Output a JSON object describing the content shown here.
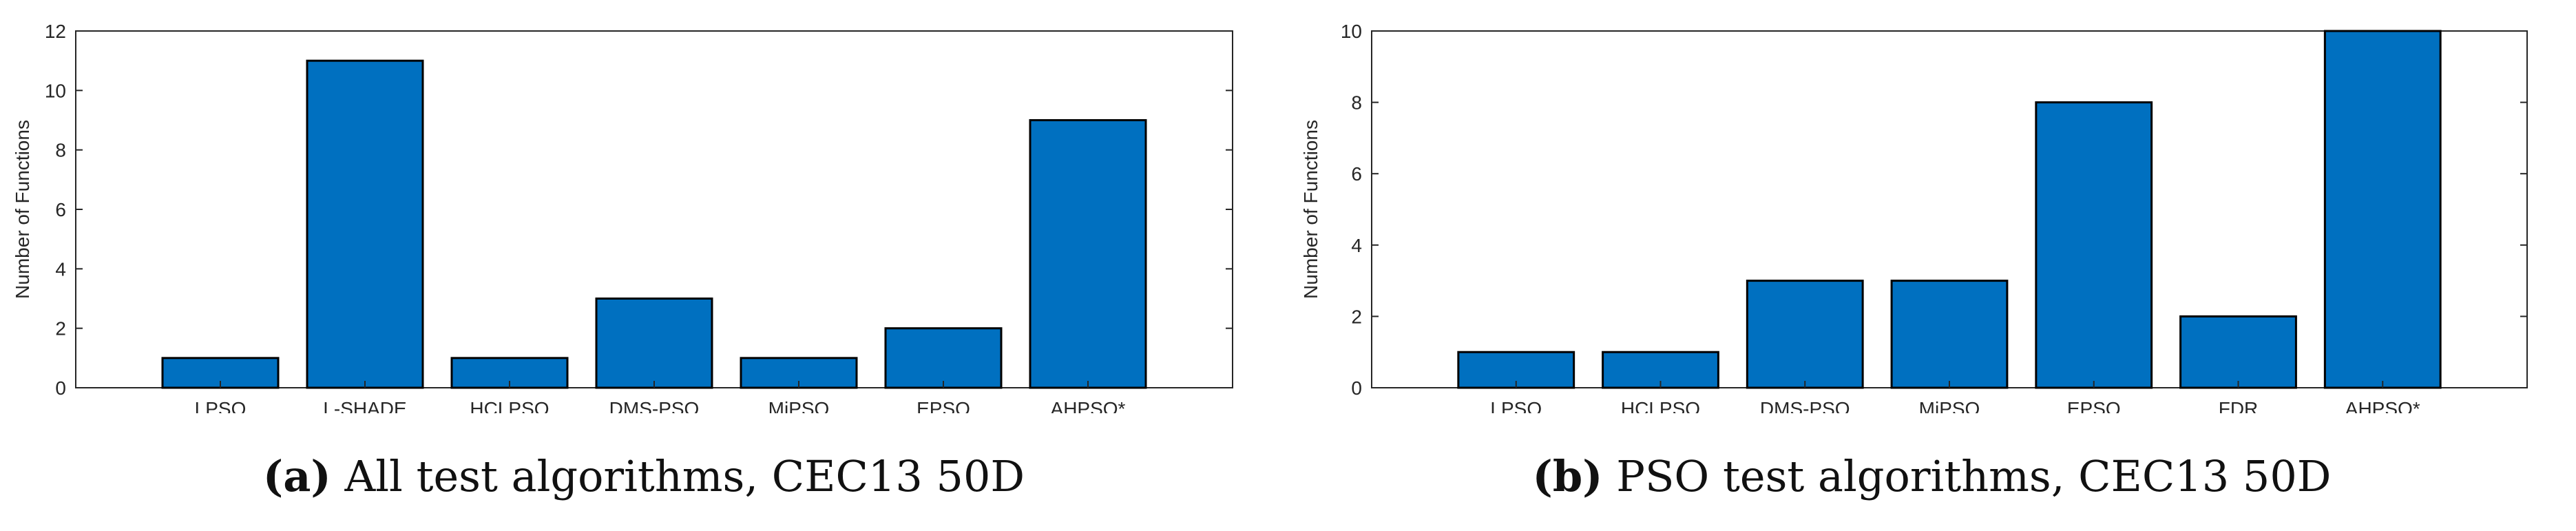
{
  "colors": {
    "bar": "#0070c0",
    "axis": "#262626"
  },
  "chart_data": [
    {
      "type": "bar",
      "categories": [
        "LPSO",
        "L-SHADE",
        "HCLPSO",
        "DMS-PSO",
        "MiPSO",
        "EPSO",
        "AHPSO*"
      ],
      "values": [
        1,
        11,
        1,
        3,
        1,
        2,
        9
      ],
      "ylabel": "Number of Functions",
      "ylim": [
        0,
        12
      ],
      "yticks": [
        0,
        2,
        4,
        6,
        8,
        10,
        12
      ],
      "caption_tag": "(a)",
      "caption_text": "All test algorithms, CEC13 50D"
    },
    {
      "type": "bar",
      "categories": [
        "LPSO",
        "HCLPSO",
        "DMS-PSO",
        "MiPSO",
        "EPSO",
        "FDR",
        "AHPSO*"
      ],
      "values": [
        1,
        1,
        3,
        3,
        8,
        2,
        10
      ],
      "ylabel": "Number of Functions",
      "ylim": [
        0,
        10
      ],
      "yticks": [
        0,
        2,
        4,
        6,
        8,
        10
      ],
      "caption_tag": "(b)",
      "caption_text": "PSO test algorithms, CEC13 50D"
    }
  ]
}
